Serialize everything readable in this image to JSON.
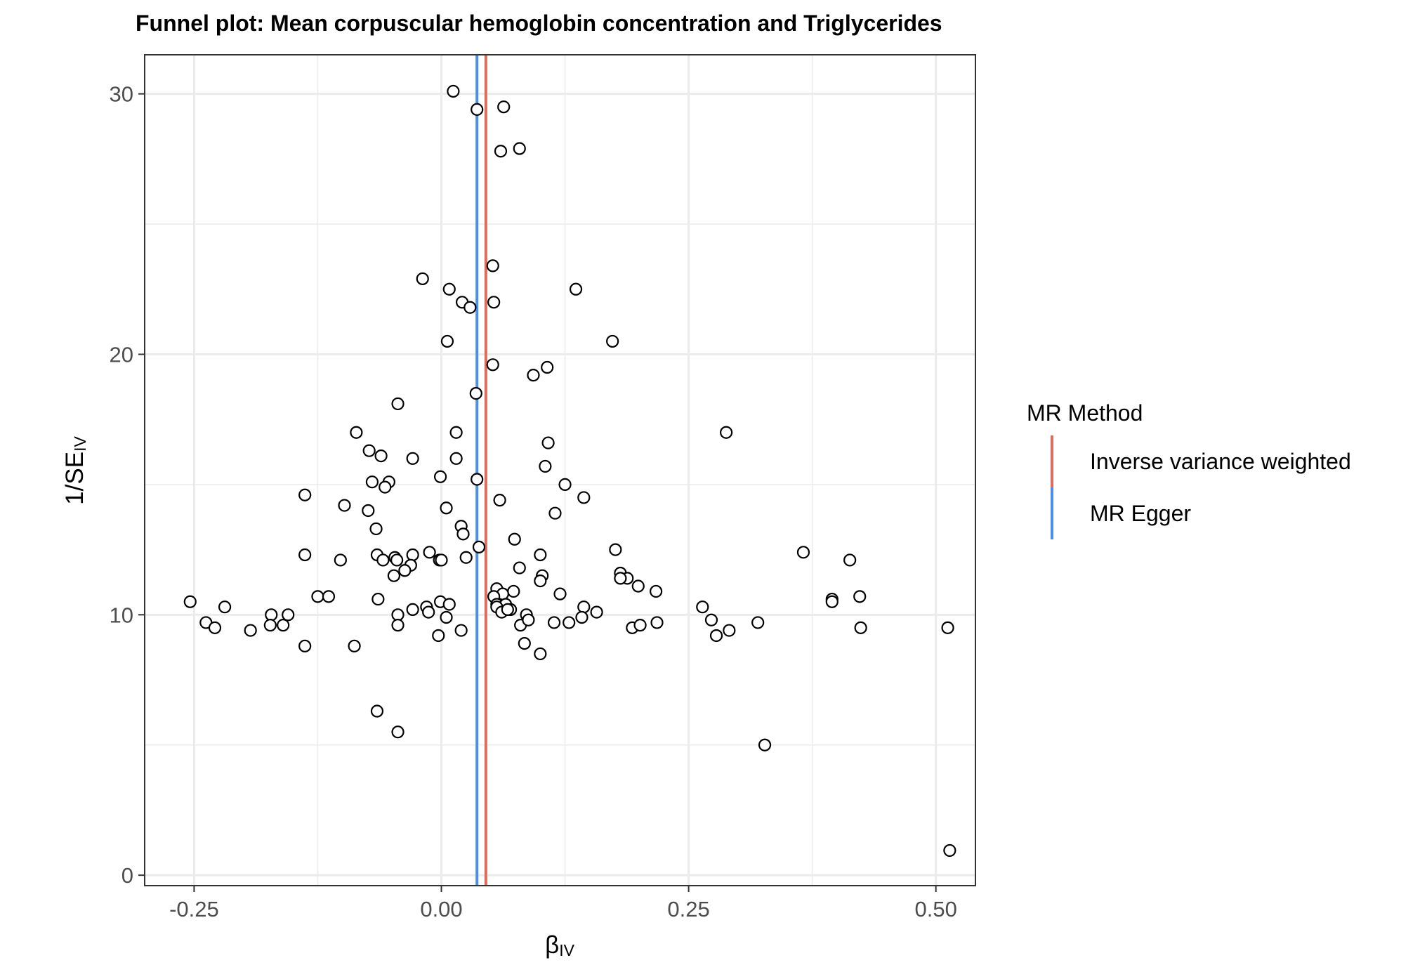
{
  "chart_data": {
    "type": "scatter",
    "title": "Funnel plot: Mean corpuscular hemoglobin concentration and Triglycerides",
    "xlabel": {
      "main": "β",
      "sub": "IV"
    },
    "ylabel": {
      "main": "1/SE",
      "sub": "IV"
    },
    "xlim": [
      -0.3,
      0.54
    ],
    "ylim": [
      -0.4,
      31.5
    ],
    "x_ticks": [
      {
        "value": -0.25,
        "label": "-0.25"
      },
      {
        "value": 0.0,
        "label": "0.00"
      },
      {
        "value": 0.25,
        "label": "0.25"
      },
      {
        "value": 0.5,
        "label": "0.50"
      }
    ],
    "y_ticks": [
      {
        "value": 0,
        "label": "0"
      },
      {
        "value": 10,
        "label": "10"
      },
      {
        "value": 20,
        "label": "20"
      },
      {
        "value": 30,
        "label": "30"
      }
    ],
    "grid": true,
    "legend": {
      "title": "MR Method",
      "position": "right",
      "items": [
        {
          "label": "Inverse variance weighted",
          "color": "#e06c5f"
        },
        {
          "label": "MR Egger",
          "color": "#4a8ff0"
        }
      ]
    },
    "vlines": [
      {
        "method": "Inverse variance weighted",
        "x": 0.045,
        "color": "#e06c5f"
      },
      {
        "method": "MR Egger",
        "x": 0.036,
        "color": "#4a8ff0"
      }
    ],
    "points": [
      [
        0.012,
        30.1
      ],
      [
        0.036,
        29.4
      ],
      [
        0.063,
        29.5
      ],
      [
        0.06,
        27.8
      ],
      [
        0.079,
        27.9
      ],
      [
        0.052,
        23.4
      ],
      [
        -0.019,
        22.9
      ],
      [
        0.008,
        22.5
      ],
      [
        0.136,
        22.5
      ],
      [
        0.021,
        22.0
      ],
      [
        0.053,
        22.0
      ],
      [
        0.029,
        21.8
      ],
      [
        0.006,
        20.5
      ],
      [
        0.173,
        20.5
      ],
      [
        0.052,
        19.6
      ],
      [
        0.107,
        19.5
      ],
      [
        0.093,
        19.2
      ],
      [
        0.035,
        18.5
      ],
      [
        -0.044,
        18.1
      ],
      [
        -0.086,
        17.0
      ],
      [
        0.015,
        17.0
      ],
      [
        0.288,
        17.0
      ],
      [
        0.108,
        16.6
      ],
      [
        -0.073,
        16.3
      ],
      [
        -0.061,
        16.1
      ],
      [
        -0.029,
        16.0
      ],
      [
        0.015,
        16.0
      ],
      [
        0.105,
        15.7
      ],
      [
        -0.001,
        15.3
      ],
      [
        -0.07,
        15.1
      ],
      [
        -0.053,
        15.1
      ],
      [
        -0.057,
        14.9
      ],
      [
        0.036,
        15.2
      ],
      [
        0.125,
        15.0
      ],
      [
        -0.138,
        14.6
      ],
      [
        0.059,
        14.4
      ],
      [
        0.144,
        14.5
      ],
      [
        -0.098,
        14.2
      ],
      [
        0.005,
        14.1
      ],
      [
        -0.074,
        14.0
      ],
      [
        0.115,
        13.9
      ],
      [
        0.02,
        13.4
      ],
      [
        -0.066,
        13.3
      ],
      [
        0.022,
        13.1
      ],
      [
        0.074,
        12.9
      ],
      [
        0.038,
        12.6
      ],
      [
        0.176,
        12.5
      ],
      [
        -0.138,
        12.3
      ],
      [
        -0.012,
        12.4
      ],
      [
        0.1,
        12.3
      ],
      [
        0.366,
        12.4
      ],
      [
        -0.065,
        12.3
      ],
      [
        -0.029,
        12.3
      ],
      [
        -0.047,
        12.2
      ],
      [
        -0.102,
        12.1
      ],
      [
        -0.059,
        12.1
      ],
      [
        -0.045,
        12.1
      ],
      [
        -0.002,
        12.1
      ],
      [
        0.0,
        12.1
      ],
      [
        0.025,
        12.2
      ],
      [
        0.413,
        12.1
      ],
      [
        -0.031,
        11.9
      ],
      [
        0.079,
        11.8
      ],
      [
        -0.037,
        11.7
      ],
      [
        0.181,
        11.6
      ],
      [
        0.102,
        11.5
      ],
      [
        0.188,
        11.4
      ],
      [
        -0.048,
        11.5
      ],
      [
        0.181,
        11.4
      ],
      [
        0.1,
        11.3
      ],
      [
        0.199,
        11.1
      ],
      [
        0.056,
        11.0
      ],
      [
        0.073,
        10.9
      ],
      [
        0.12,
        10.8
      ],
      [
        0.217,
        10.9
      ],
      [
        -0.125,
        10.7
      ],
      [
        -0.114,
        10.7
      ],
      [
        -0.064,
        10.6
      ],
      [
        0.062,
        10.8
      ],
      [
        0.053,
        10.7
      ],
      [
        0.395,
        10.6
      ],
      [
        0.423,
        10.7
      ],
      [
        -0.254,
        10.5
      ],
      [
        -0.219,
        10.3
      ],
      [
        -0.001,
        10.5
      ],
      [
        0.008,
        10.4
      ],
      [
        -0.015,
        10.3
      ],
      [
        -0.029,
        10.2
      ],
      [
        0.056,
        10.4
      ],
      [
        0.065,
        10.4
      ],
      [
        0.395,
        10.5
      ],
      [
        -0.013,
        10.1
      ],
      [
        0.144,
        10.3
      ],
      [
        0.264,
        10.3
      ],
      [
        0.056,
        10.3
      ],
      [
        0.07,
        10.2
      ],
      [
        0.061,
        10.1
      ],
      [
        -0.172,
        10.0
      ],
      [
        -0.155,
        10.0
      ],
      [
        -0.044,
        10.0
      ],
      [
        0.005,
        9.9
      ],
      [
        0.086,
        10.0
      ],
      [
        0.142,
        9.9
      ],
      [
        0.157,
        10.1
      ],
      [
        0.067,
        10.2
      ],
      [
        -0.238,
        9.7
      ],
      [
        -0.229,
        9.5
      ],
      [
        -0.173,
        9.6
      ],
      [
        -0.16,
        9.6
      ],
      [
        -0.044,
        9.6
      ],
      [
        0.08,
        9.6
      ],
      [
        0.088,
        9.8
      ],
      [
        0.114,
        9.7
      ],
      [
        0.129,
        9.7
      ],
      [
        0.193,
        9.5
      ],
      [
        0.201,
        9.6
      ],
      [
        0.218,
        9.7
      ],
      [
        0.273,
        9.8
      ],
      [
        0.32,
        9.7
      ],
      [
        -0.193,
        9.4
      ],
      [
        -0.003,
        9.2
      ],
      [
        0.02,
        9.4
      ],
      [
        0.278,
        9.2
      ],
      [
        0.291,
        9.4
      ],
      [
        0.424,
        9.5
      ],
      [
        0.512,
        9.5
      ],
      [
        -0.138,
        8.8
      ],
      [
        -0.088,
        8.8
      ],
      [
        0.084,
        8.9
      ],
      [
        0.1,
        8.5
      ],
      [
        -0.065,
        6.3
      ],
      [
        -0.044,
        5.5
      ],
      [
        0.327,
        5.0
      ],
      [
        0.514,
        0.95
      ]
    ]
  }
}
